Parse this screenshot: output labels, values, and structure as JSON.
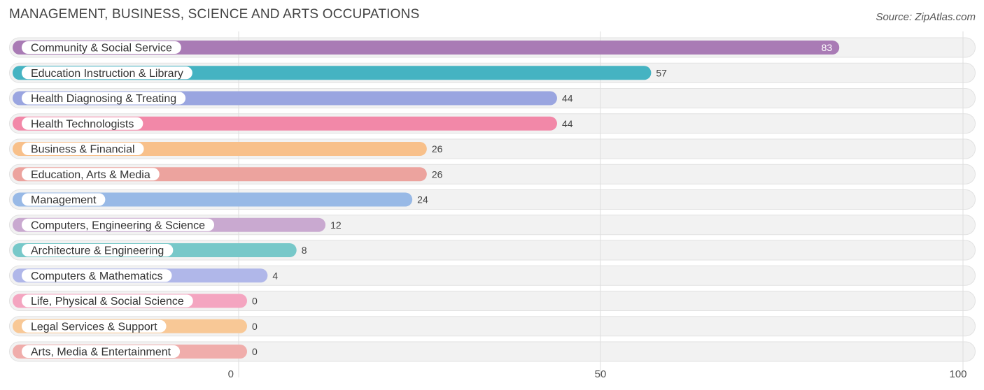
{
  "header": {
    "title": "MANAGEMENT, BUSINESS, SCIENCE AND ARTS OCCUPATIONS",
    "source": "Source: ZipAtlas.com"
  },
  "chart_data": {
    "type": "bar",
    "orientation": "horizontal",
    "title": "MANAGEMENT, BUSINESS, SCIENCE AND ARTS OCCUPATIONS",
    "categories": [
      "Community & Social Service",
      "Education Instruction & Library",
      "Health Diagnosing & Treating",
      "Health Technologists",
      "Business & Financial",
      "Education, Arts & Media",
      "Management",
      "Computers, Engineering & Science",
      "Architecture & Engineering",
      "Computers & Mathematics",
      "Life, Physical & Social Science",
      "Legal Services & Support",
      "Arts, Media & Entertainment"
    ],
    "values": [
      83,
      57,
      44,
      44,
      26,
      26,
      24,
      12,
      8,
      4,
      0,
      0,
      0
    ],
    "colors": [
      "#a97bb5",
      "#45b3c2",
      "#9aa5e0",
      "#f288a8",
      "#f8c08a",
      "#eca39e",
      "#98b9e6",
      "#c9a9d0",
      "#77c8c9",
      "#b0b7e9",
      "#f4a5c0",
      "#f8c896",
      "#f0adab"
    ],
    "xlim": [
      0,
      100
    ],
    "xticks": [
      0,
      50,
      100
    ],
    "grid": true
  }
}
